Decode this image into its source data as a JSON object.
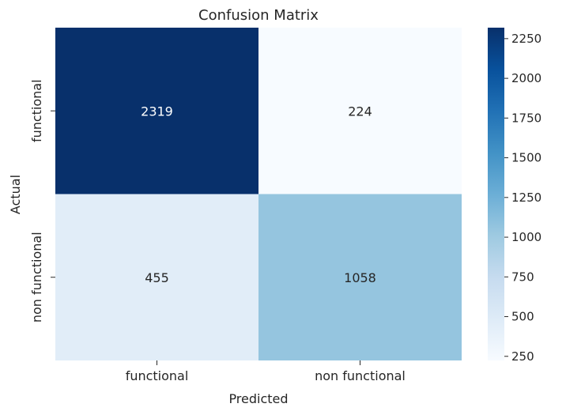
{
  "chart_data": {
    "type": "heatmap",
    "title": "Confusion Matrix",
    "xlabel": "Predicted",
    "ylabel": "Actual",
    "x_categories": [
      "functional",
      "non functional"
    ],
    "y_categories": [
      "functional",
      "non functional"
    ],
    "values": [
      [
        2319,
        224
      ],
      [
        455,
        1058
      ]
    ],
    "colormap": "Blues",
    "colorbar": {
      "min": 224,
      "max": 2319,
      "ticks": [
        250,
        500,
        750,
        1000,
        1250,
        1500,
        1750,
        2000,
        2250
      ],
      "tick_labels": [
        "250",
        "500",
        "750",
        "1000",
        "1250",
        "1500",
        "1750",
        "2000",
        "2250"
      ]
    },
    "cell_label_colors": {
      "dark": "#ffffff",
      "light": "#262626"
    },
    "grid": false
  }
}
